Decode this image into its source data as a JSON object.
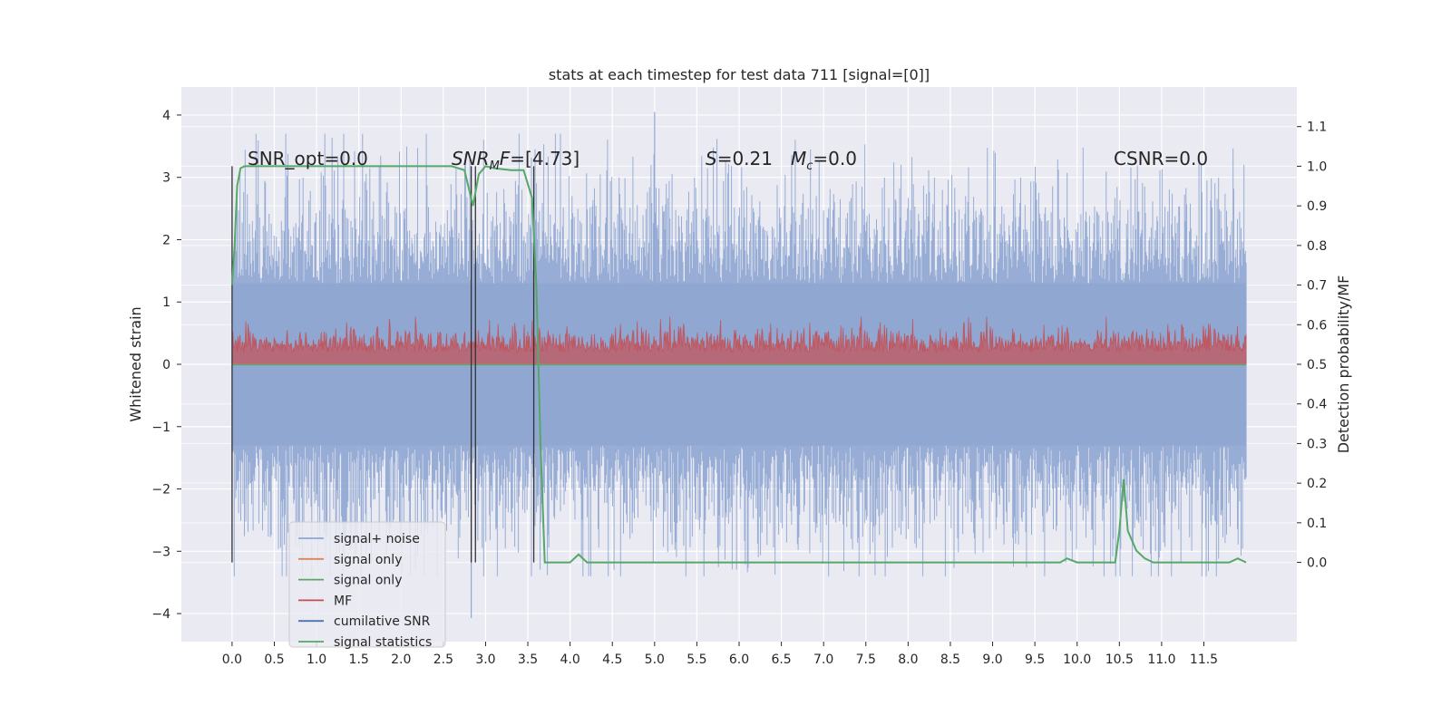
{
  "chart_data": {
    "type": "line",
    "title": "stats at each timestep for test data 711 [signal=[0]]",
    "xlabel": "",
    "ylabel": "Whitened strain",
    "y2label": "Detection probability/MF",
    "xlim": [
      -0.6,
      12.6
    ],
    "ylim": [
      -4.45,
      4.45
    ],
    "y2lim": [
      -0.2,
      1.2
    ],
    "grid": true,
    "legend_position": "lower-left",
    "x_ticks": [
      "0.0",
      "0.5",
      "1.0",
      "1.5",
      "2.0",
      "2.5",
      "3.0",
      "3.5",
      "4.0",
      "4.5",
      "5.0",
      "5.5",
      "6.0",
      "6.5",
      "7.0",
      "7.5",
      "8.0",
      "8.5",
      "9.0",
      "9.5",
      "10.0",
      "10.5",
      "11.0",
      "11.5"
    ],
    "y_ticks": [
      "4",
      "3",
      "2",
      "1",
      "0",
      "−1",
      "−2",
      "−3",
      "−4"
    ],
    "y2_ticks": [
      "1.1",
      "1.0",
      "0.9",
      "0.8",
      "0.7",
      "0.6",
      "0.5",
      "0.4",
      "0.3",
      "0.2",
      "0.1",
      "0.0"
    ],
    "annotations": {
      "snr_opt": "SNR_opt=0.0",
      "snr_mf_main": "SNR",
      "snr_mf_sub": "M",
      "snr_mf_tail": "F",
      "snr_mf_value": "=[4.73]",
      "s_label": "S",
      "s_value": "=0.21",
      "mc_label": "M",
      "mc_sub": "c",
      "mc_value": "=0.0",
      "csnr": "CSNR=0.0"
    },
    "series": [
      {
        "name": "signal+ noise",
        "color": "#8fa6d2",
        "summary": {
          "x_range": [
            0.0,
            12.0
          ],
          "y_range": [
            -4.07,
            4.05
          ],
          "typical_amplitude": 2.0
        }
      },
      {
        "name": "signal only",
        "color": "#dd8452",
        "values_note": "0 throughout"
      },
      {
        "name": "signal only",
        "color": "#55a868",
        "values_note": "0 throughout"
      },
      {
        "name": "MF",
        "color": "#c44e52",
        "summary": {
          "axis": "right",
          "baseline": 0.5,
          "range": [
            0.5,
            0.62
          ]
        }
      },
      {
        "name": "cumilative SNR",
        "color": "#4c72b0",
        "values_note": "not visible"
      },
      {
        "name": "signal statistics",
        "color": "#55a868",
        "axis": "right",
        "x": [
          0.0,
          0.03,
          0.06,
          0.1,
          0.15,
          0.3,
          1.0,
          2.0,
          2.6,
          2.75,
          2.85,
          2.92,
          3.0,
          3.1,
          3.3,
          3.45,
          3.55,
          3.6,
          3.65,
          3.7,
          3.75,
          3.85,
          4.0,
          4.1,
          4.2,
          4.3,
          5.0,
          6.0,
          7.0,
          8.0,
          8.5,
          9.0,
          9.5,
          9.8,
          9.88,
          10.0,
          10.1,
          10.45,
          10.5,
          10.55,
          10.6,
          10.7,
          10.8,
          10.9,
          11.0,
          11.5,
          11.8,
          11.9,
          12.0
        ],
        "y": [
          0.7,
          0.8,
          0.95,
          0.995,
          1.0,
          1.0,
          1.0,
          1.0,
          1.0,
          0.99,
          0.9,
          0.98,
          1.0,
          0.995,
          0.99,
          0.99,
          0.92,
          0.7,
          0.3,
          0.0,
          0.0,
          0.0,
          0.0,
          0.02,
          0.0,
          0.0,
          0.0,
          0.0,
          0.0,
          0.0,
          0.0,
          0.0,
          0.0,
          0.0,
          0.01,
          0.0,
          0.0,
          0.0,
          0.08,
          0.21,
          0.08,
          0.03,
          0.01,
          0.0,
          0.0,
          0.0,
          0.0,
          0.01,
          0.0
        ]
      }
    ],
    "vertical_markers": [
      0.0,
      2.83,
      2.88,
      3.57
    ]
  }
}
